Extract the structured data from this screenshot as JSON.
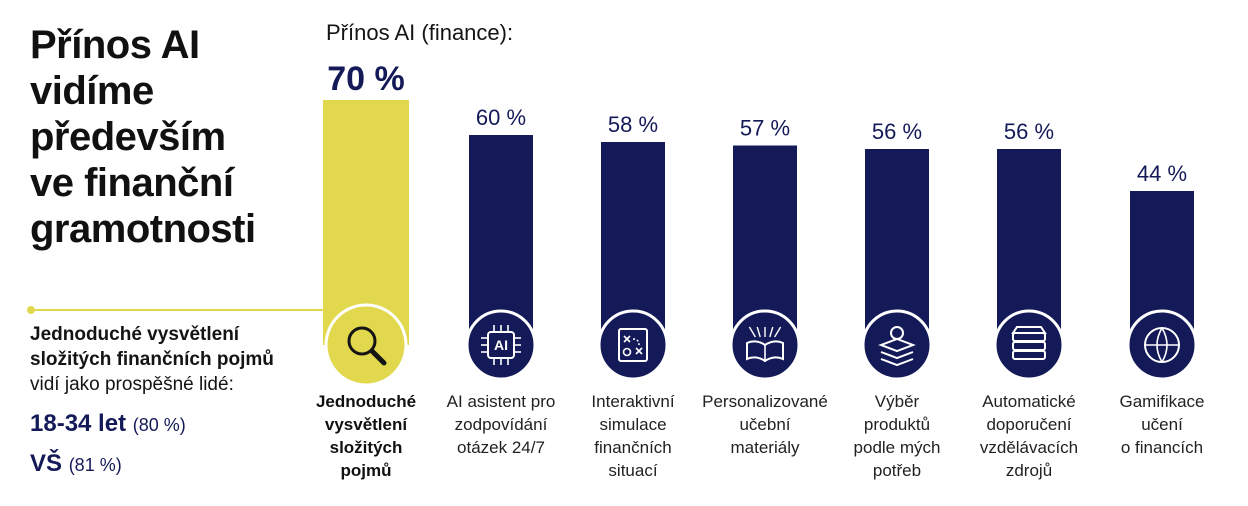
{
  "headline": "Přínos AI\nvidíme\npředevším\nve finanční\ngramotnosti",
  "side": {
    "desc_bold": "Jednoduché vysvětlení složitých finančních pojmů",
    "desc_rest": "vidí jako prospěšné lidé:",
    "stats": [
      {
        "label": "18-34 let",
        "value": "(80 %)"
      },
      {
        "label": "VŠ",
        "value": "(81 %)"
      }
    ]
  },
  "colors": {
    "highlight": "#e2d84e",
    "bar": "#141a58"
  },
  "chart_data": {
    "type": "bar",
    "title": "Přínos AI (finance):",
    "ylim": [
      0,
      100
    ],
    "categories": [
      "Jednoduché\nvysvětlení\nsložitých\npojmů",
      "AI asistent pro\nzodpovídání\notázek 24/7",
      "Interaktivní\nsimulace\nfinančních\nsituací",
      "Personalizované\nučební\nmateriály",
      "Výběr\nproduktů\npodle mých\npotřeb",
      "Automatické\ndoporučení\nvzdělávacích\nzdrojů",
      "Gamifikace\nučení\no financích"
    ],
    "values": [
      70,
      60,
      58,
      57,
      56,
      56,
      44
    ],
    "value_labels": [
      "70 %",
      "60 %",
      "58 %",
      "57 %",
      "56 %",
      "56 %",
      "44 %"
    ],
    "icons": [
      "magnifier-icon",
      "ai-chip-icon",
      "strategy-board-icon",
      "open-book-icon",
      "person-layers-icon",
      "book-stack-icon",
      "ball-icon"
    ],
    "highlight_index": 0
  }
}
